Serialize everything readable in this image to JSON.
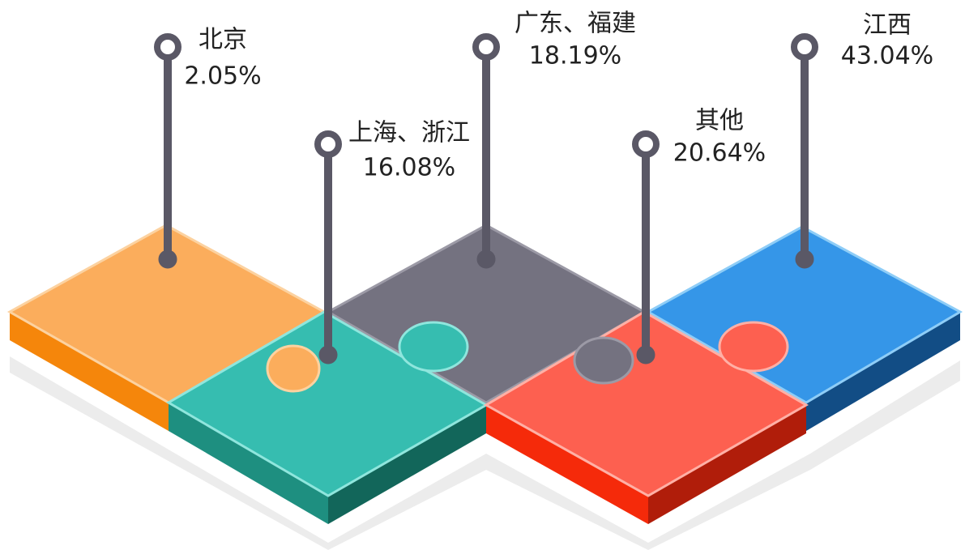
{
  "items": [
    {
      "label": "北京",
      "value": "2.05%"
    },
    {
      "label": "上海、浙江",
      "value": "16.08%"
    },
    {
      "label": "广东、福建",
      "value": "18.19%"
    },
    {
      "label": "其他",
      "value": "20.64%"
    },
    {
      "label": "江西",
      "value": "43.04%"
    }
  ]
}
